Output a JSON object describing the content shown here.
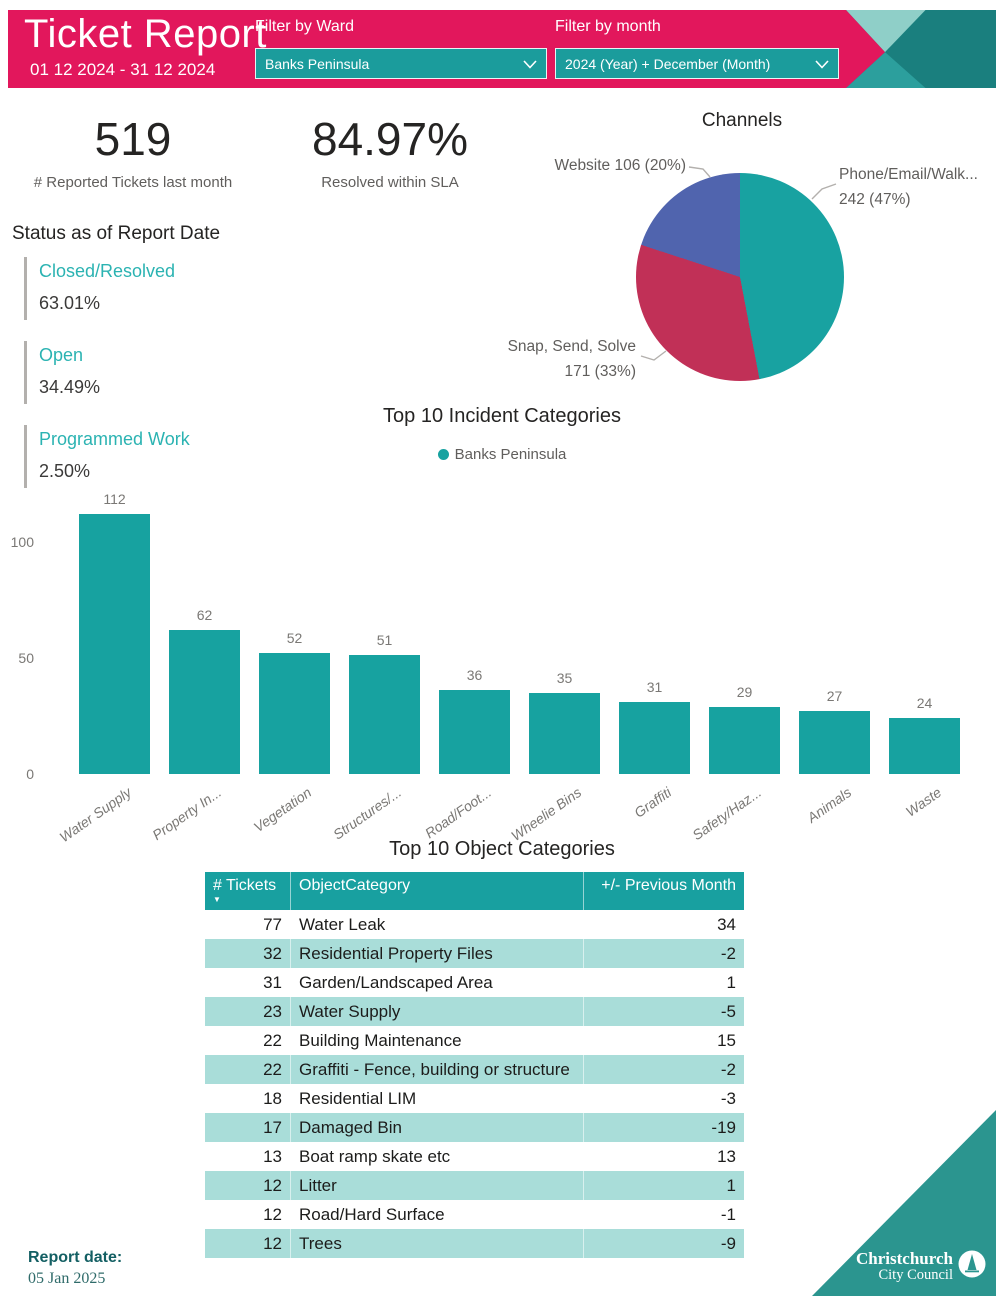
{
  "header": {
    "title": "Ticket Report",
    "date_range": "01 12 2024 - 31 12 2024",
    "filters": [
      {
        "label": "Filter by Ward",
        "value": "Banks Peninsula"
      },
      {
        "label": "Filter by month",
        "value": "2024 (Year) + December (Month)"
      }
    ]
  },
  "kpis": [
    {
      "value": "519",
      "caption": "# Reported Tickets last month"
    },
    {
      "value": "84.97%",
      "caption": "Resolved within SLA"
    }
  ],
  "status": {
    "heading": "Status as of Report Date",
    "items": [
      {
        "label": "Closed/Resolved",
        "value": "63.01%"
      },
      {
        "label": "Open",
        "value": "34.49%"
      },
      {
        "label": "Programmed Work",
        "value": "2.50%"
      }
    ]
  },
  "chart_data": [
    {
      "type": "pie",
      "title": "Channels",
      "legend_position": "labels-outside",
      "slices": [
        {
          "label": "Phone/Email/Walk...",
          "value": 242,
          "pct": 47,
          "color": "#18A2A1",
          "display": [
            "Phone/Email/Walk...",
            "242 (47%)"
          ]
        },
        {
          "label": "Snap, Send, Solve",
          "value": 171,
          "pct": 33,
          "color": "#C13057",
          "display": [
            "Snap, Send, Solve",
            "171 (33%)"
          ]
        },
        {
          "label": "Website",
          "value": 106,
          "pct": 20,
          "color": "#5064AE",
          "display": [
            "Website 106 (20%)"
          ]
        }
      ]
    },
    {
      "type": "bar",
      "title": "Top 10 Incident Categories",
      "legend": [
        {
          "label": "Banks Peninsula",
          "color": "#17A2A0"
        }
      ],
      "categories": [
        "Water Supply",
        "Property In...",
        "Vegetation",
        "Structures/...",
        "Road/Foot...",
        "Wheelie Bins",
        "Graffiti",
        "Safety/Haz...",
        "Animals",
        "Waste"
      ],
      "values": [
        112,
        62,
        52,
        51,
        36,
        35,
        31,
        29,
        27,
        24
      ],
      "color": "#17A2A0",
      "yticks": [
        0,
        50,
        100
      ],
      "ylim": [
        0,
        120
      ],
      "grid": false
    },
    {
      "type": "table",
      "title": "Top 10 Object Categories",
      "columns": [
        "# Tickets",
        "ObjectCategory",
        "+/- Previous Month"
      ],
      "sort_icon": "▼",
      "rows": [
        [
          77,
          "Water Leak",
          34
        ],
        [
          32,
          "Residential Property Files",
          -2
        ],
        [
          31,
          "Garden/Landscaped Area",
          1
        ],
        [
          23,
          "Water Supply",
          -5
        ],
        [
          22,
          "Building Maintenance",
          15
        ],
        [
          22,
          "Graffiti - Fence, building or structure",
          -2
        ],
        [
          18,
          "Residential LIM",
          -3
        ],
        [
          17,
          "Damaged Bin",
          -19
        ],
        [
          13,
          "Boat ramp skate etc",
          13
        ],
        [
          12,
          "Litter",
          1
        ],
        [
          12,
          "Road/Hard Surface",
          -1
        ],
        [
          12,
          "Trees",
          -9
        ]
      ]
    }
  ],
  "footer": {
    "report_date_label": "Report date:",
    "report_date": "05 Jan 2025",
    "logo_line1": "Christchurch",
    "logo_line2": "City Council"
  },
  "colors": {
    "accent_pink": "#E2175C",
    "teal": "#17A2A0",
    "teal_dark": "#1A7F7E",
    "teal_light": "#8FCFC8",
    "teal_mid": "#2C9F9D",
    "pie_crimson": "#C13057",
    "pie_blue": "#5064AE",
    "table_header_bg": "#18A0A0",
    "table_alt_row_bg": "#A9DDD9",
    "status_label": "#2BB3B2",
    "footer_triangle": "#2B958F",
    "report_date_text": "#135F63"
  }
}
